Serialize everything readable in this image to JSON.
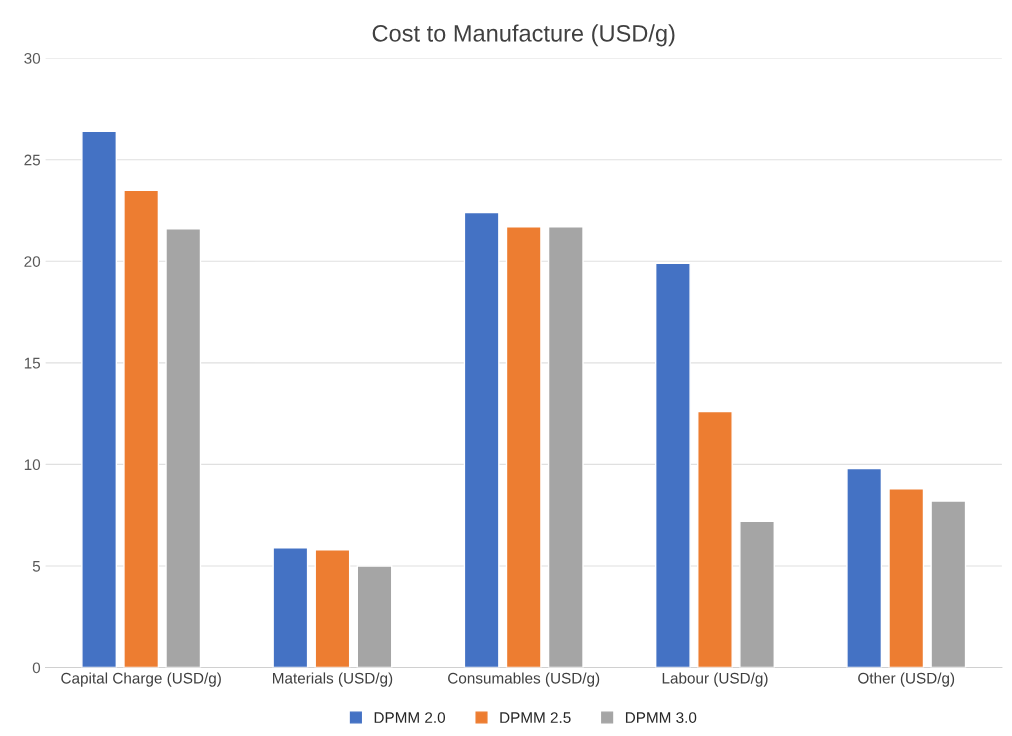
{
  "chart_data": {
    "type": "bar",
    "title": "Cost to Manufacture (USD/g)",
    "categories": [
      "Capital Charge (USD/g)",
      "Materials (USD/g)",
      "Consumables (USD/g)",
      "Labour (USD/g)",
      "Other (USD/g)"
    ],
    "series": [
      {
        "name": "DPMM 2.0",
        "color": "#4472c4",
        "values": [
          26.4,
          5.9,
          22.4,
          19.9,
          9.8
        ]
      },
      {
        "name": "DPMM 2.5",
        "color": "#ed7d31",
        "values": [
          23.5,
          5.8,
          21.7,
          12.6,
          8.8
        ]
      },
      {
        "name": "DPMM 3.0",
        "color": "#a5a5a5",
        "values": [
          21.6,
          5.0,
          21.7,
          7.2,
          8.2
        ]
      }
    ],
    "ylim": [
      0,
      30
    ],
    "yticks": [
      0,
      5,
      10,
      15,
      20,
      25,
      30
    ],
    "grid": "y",
    "legend": "bottom"
  }
}
